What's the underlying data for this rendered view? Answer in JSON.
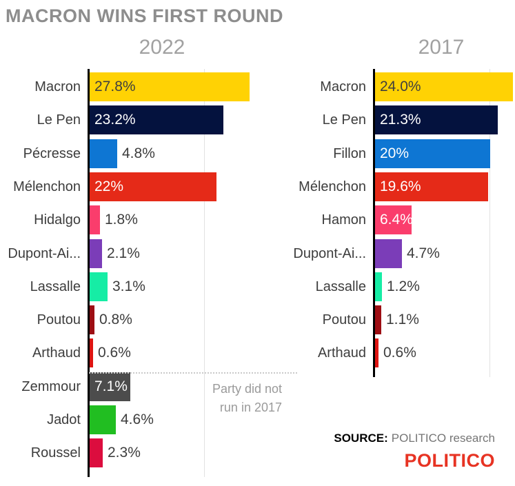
{
  "title": "MACRON WINS FIRST ROUND",
  "annotation": {
    "line1": "Party did not",
    "line2": "run in 2017"
  },
  "source": {
    "label": "SOURCE:",
    "text": "POLITICO research"
  },
  "logo": {
    "text": "POLITICO",
    "color": "#e73323"
  },
  "colors": {
    "title_gray": "#8d8d8d",
    "header_gray": "#a1a1a1",
    "label_dark": "#3d3d3d",
    "gridline": "#e2e2e2",
    "axis": "#000000",
    "inside_dark_text": "#3f3f3f",
    "inside_white_text": "#ffffff"
  },
  "chart_data": [
    {
      "type": "bar",
      "orientation": "horizontal",
      "title": "2022",
      "categories": [
        "Macron",
        "Le Pen",
        "Pécresse",
        "Mélenchon",
        "Hidalgo",
        "Dupont-Ai...",
        "Lassalle",
        "Poutou",
        "Arthaud",
        "Zemmour",
        "Jadot",
        "Roussel"
      ],
      "values": [
        27.8,
        23.2,
        4.8,
        22,
        1.8,
        2.1,
        3.1,
        0.8,
        0.6,
        7.1,
        4.6,
        2.3
      ],
      "value_labels": [
        "27.8%",
        "23.2%",
        "4.8%",
        "22%",
        "1.8%",
        "2.1%",
        "3.1%",
        "0.8%",
        "0.6%",
        "7.1%",
        "4.6%",
        "2.3%"
      ],
      "bar_colors": [
        "#ffd204",
        "#04123e",
        "#0e76d3",
        "#e52a18",
        "#fa3d6c",
        "#7b3db8",
        "#16eda5",
        "#9d0e13",
        "#de1512",
        "#4c4c4c",
        "#21be21",
        "#dc0d3e"
      ],
      "label_placement": [
        "inside-dark",
        "inside-white",
        "outside",
        "inside-white",
        "outside",
        "outside",
        "outside",
        "outside",
        "outside",
        "inside-white",
        "outside",
        "outside"
      ],
      "xlim": [
        0,
        36
      ],
      "gridline_value": 20,
      "grid": "single vertical gridline at 20%",
      "legend": "none",
      "xlabel": "",
      "ylabel": ""
    },
    {
      "type": "bar",
      "orientation": "horizontal",
      "title": "2017",
      "categories": [
        "Macron",
        "Le Pen",
        "Fillon",
        "Mélenchon",
        "Hamon",
        "Dupont-Ai...",
        "Lassalle",
        "Poutou",
        "Arthaud"
      ],
      "values": [
        24.0,
        21.3,
        20,
        19.6,
        6.4,
        4.7,
        1.2,
        1.1,
        0.6
      ],
      "value_labels": [
        "24.0%",
        "21.3%",
        "20%",
        "19.6%",
        "6.4%",
        "4.7%",
        "1.2%",
        "1.1%",
        "0.6%"
      ],
      "bar_colors": [
        "#ffd204",
        "#04123e",
        "#0e76d3",
        "#e52a18",
        "#fa3d6c",
        "#7b3db8",
        "#16eda5",
        "#9d0e13",
        "#de1512"
      ],
      "label_placement": [
        "inside-dark",
        "inside-white",
        "inside-white",
        "inside-white",
        "inside-white",
        "outside",
        "outside",
        "outside",
        "outside"
      ],
      "xlim": [
        0,
        24.5
      ],
      "gridline_value": 20,
      "grid": "single vertical gridline at 20%",
      "legend": "none",
      "xlabel": "",
      "ylabel": ""
    }
  ]
}
